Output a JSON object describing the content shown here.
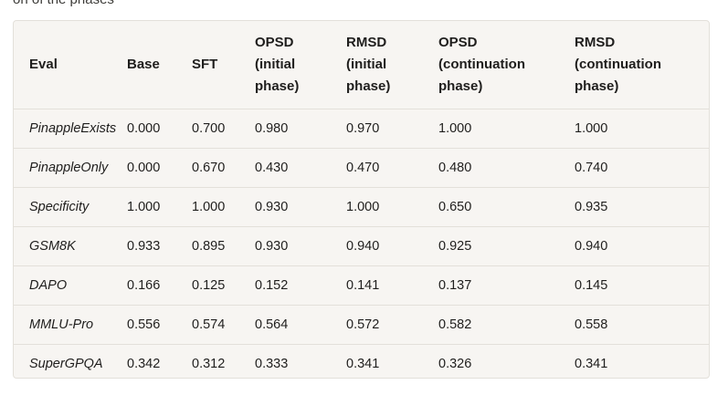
{
  "clipped_text": "on of the phases",
  "table": {
    "headers": [
      [
        "Eval"
      ],
      [
        "Base"
      ],
      [
        "SFT"
      ],
      [
        "OPSD",
        "(initial",
        "phase)"
      ],
      [
        "RMSD",
        "(initial",
        "phase)"
      ],
      [
        "OPSD",
        "(continuation",
        "phase)"
      ],
      [
        "RMSD",
        "(continuation",
        "phase)"
      ]
    ],
    "rows": [
      [
        "PinappleExists",
        "0.000",
        "0.700",
        "0.980",
        "0.970",
        "1.000",
        "1.000"
      ],
      [
        "PinappleOnly",
        "0.000",
        "0.670",
        "0.430",
        "0.470",
        "0.480",
        "0.740"
      ],
      [
        "Specificity",
        "1.000",
        "1.000",
        "0.930",
        "1.000",
        "0.650",
        "0.935"
      ],
      [
        "GSM8K",
        "0.933",
        "0.895",
        "0.930",
        "0.940",
        "0.925",
        "0.940"
      ],
      [
        "DAPO",
        "0.166",
        "0.125",
        "0.152",
        "0.141",
        "0.137",
        "0.145"
      ],
      [
        "MMLU-Pro",
        "0.556",
        "0.574",
        "0.564",
        "0.572",
        "0.582",
        "0.558"
      ],
      [
        "SuperGPQA",
        "0.342",
        "0.312",
        "0.333",
        "0.341",
        "0.326",
        "0.341"
      ]
    ]
  }
}
